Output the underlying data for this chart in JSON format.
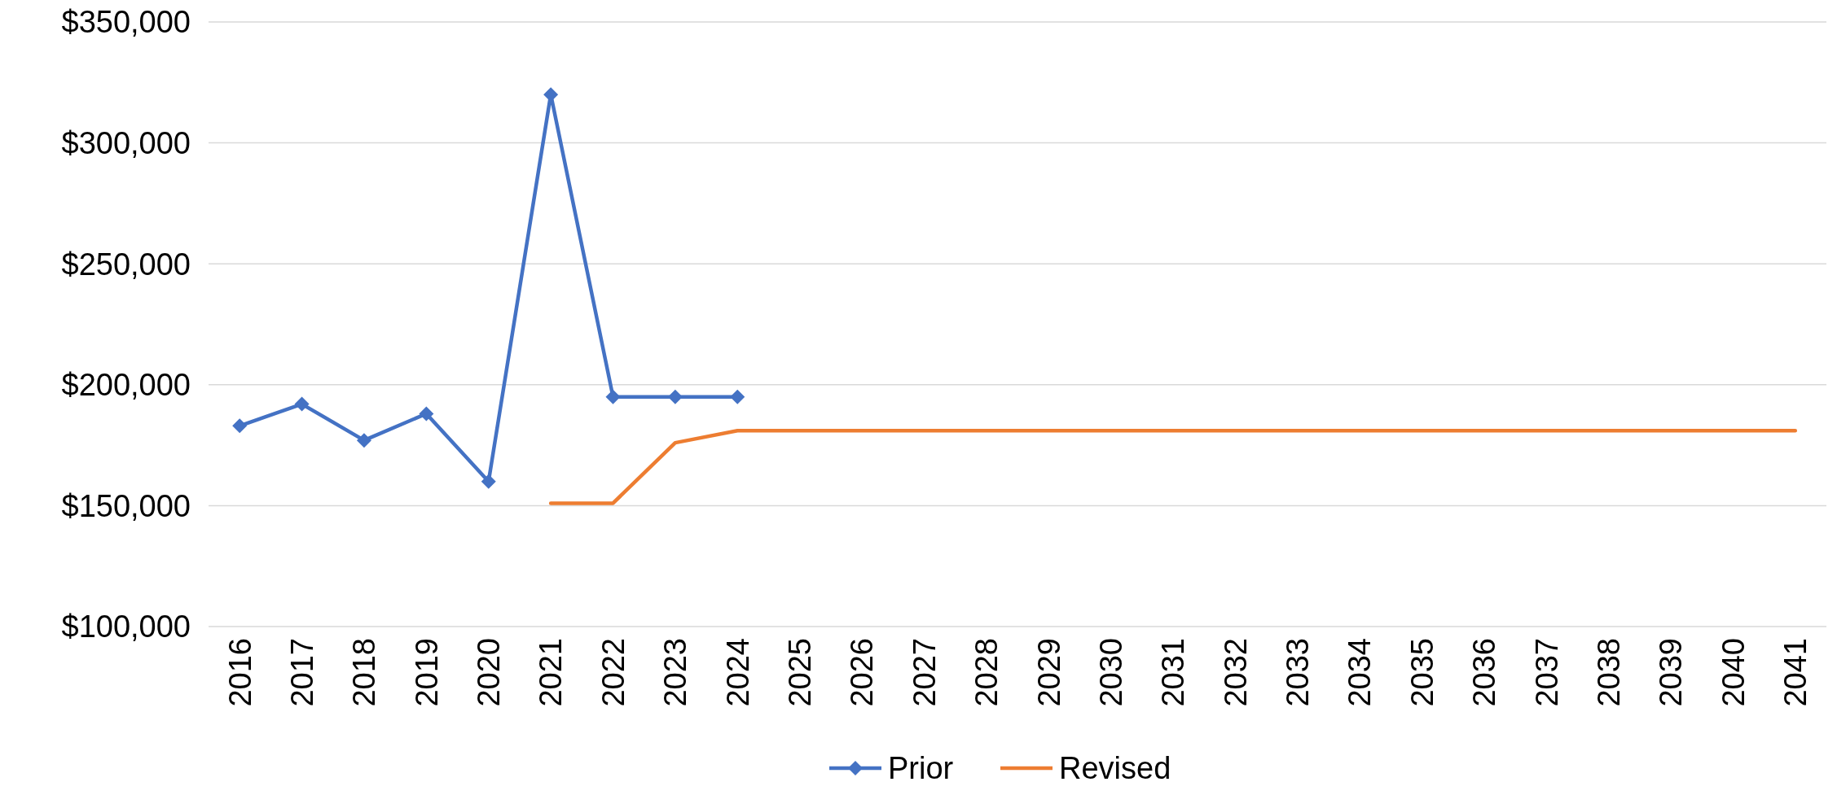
{
  "chart_data": {
    "type": "line",
    "categories": [
      "2016",
      "2017",
      "2018",
      "2019",
      "2020",
      "2021",
      "2022",
      "2023",
      "2024",
      "2025",
      "2026",
      "2027",
      "2028",
      "2029",
      "2030",
      "2031",
      "2032",
      "2033",
      "2034",
      "2035",
      "2036",
      "2037",
      "2038",
      "2039",
      "2040",
      "2041"
    ],
    "series": [
      {
        "name": "Prior",
        "color": "#4472c4",
        "marker": "diamond",
        "values": [
          183000,
          192000,
          177000,
          188000,
          160000,
          320000,
          195000,
          195000,
          195000,
          null,
          null,
          null,
          null,
          null,
          null,
          null,
          null,
          null,
          null,
          null,
          null,
          null,
          null,
          null,
          null,
          null
        ]
      },
      {
        "name": "Revised",
        "color": "#ed7d31",
        "marker": "none",
        "values": [
          null,
          null,
          null,
          null,
          null,
          151000,
          151000,
          176000,
          181000,
          181000,
          181000,
          181000,
          181000,
          181000,
          181000,
          181000,
          181000,
          181000,
          181000,
          181000,
          181000,
          181000,
          181000,
          181000,
          181000,
          181000
        ]
      }
    ],
    "ylim": [
      100000,
      350000
    ],
    "yticks": [
      {
        "value": 100000,
        "label": "$100,000"
      },
      {
        "value": 150000,
        "label": "$150,000"
      },
      {
        "value": 200000,
        "label": "$200,000"
      },
      {
        "value": 250000,
        "label": "$250,000"
      },
      {
        "value": 300000,
        "label": "$300,000"
      },
      {
        "value": 350000,
        "label": "$350,000"
      }
    ],
    "grid": "y",
    "legend": "bottom"
  }
}
